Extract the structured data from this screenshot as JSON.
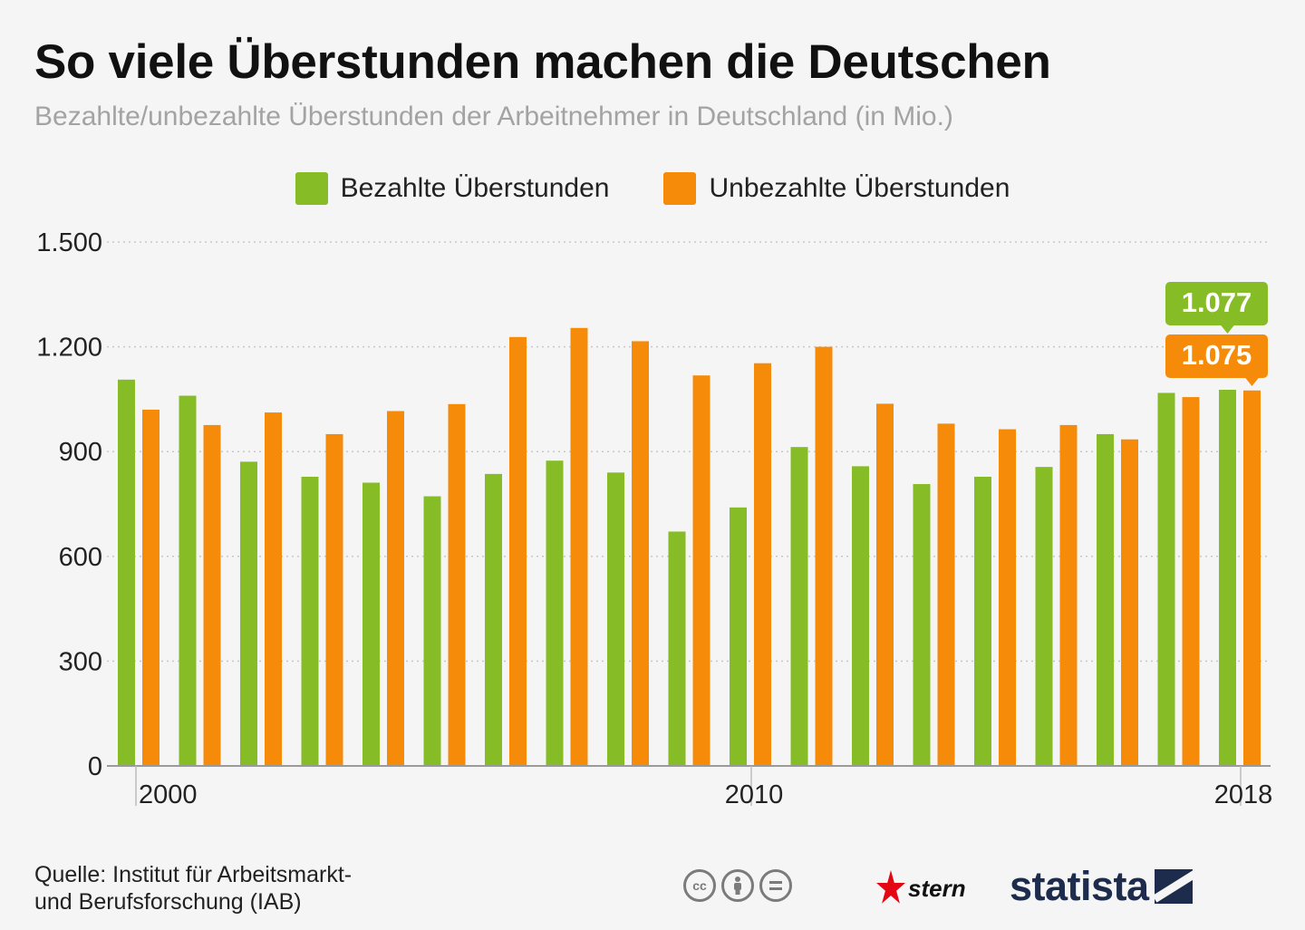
{
  "header": {
    "title": "So viele Überstunden machen die Deutschen",
    "subtitle": "Bezahlte/unbezahlte Überstunden der Arbeitnehmer in Deutschland (in Mio.)"
  },
  "legend": {
    "paid": "Bezahlte Überstunden",
    "unpaid": "Unbezahlte Überstunden"
  },
  "colors": {
    "paid": "#86bc25",
    "unpaid": "#f68b0a",
    "grid": "#c8c8c8",
    "axis": "#9a9a9a"
  },
  "chart_data": {
    "type": "bar",
    "title": "So viele Überstunden machen die Deutschen",
    "ylabel": "in Mio.",
    "ylim": [
      0,
      1500
    ],
    "yticks": [
      0,
      300,
      600,
      900,
      1200,
      1500
    ],
    "ytick_labels": [
      "0",
      "300",
      "600",
      "900",
      "1.200",
      "1.500"
    ],
    "categories": [
      "2000",
      "2001",
      "2002",
      "2003",
      "2004",
      "2005",
      "2006",
      "2007",
      "2008",
      "2009",
      "2010",
      "2011",
      "2012",
      "2013",
      "2014",
      "2015",
      "2016",
      "2017",
      "2018"
    ],
    "xtick_labels": {
      "2000": "2000",
      "2010": "2010",
      "2018": "2018"
    },
    "series": [
      {
        "name": "Bezahlte Überstunden",
        "key": "paid",
        "values": [
          1106,
          1060,
          871,
          828,
          811,
          772,
          836,
          874,
          840,
          671,
          740,
          913,
          858,
          807,
          828,
          856,
          950,
          1068,
          1077
        ]
      },
      {
        "name": "Unbezahlte Überstunden",
        "key": "unpaid",
        "values": [
          1020,
          976,
          1012,
          950,
          1016,
          1036,
          1228,
          1254,
          1216,
          1118,
          1153,
          1200,
          1037,
          980,
          964,
          976,
          935,
          1056,
          1075
        ]
      }
    ],
    "annotations": [
      {
        "series": "paid",
        "category": "2018",
        "label": "1.077"
      },
      {
        "series": "unpaid",
        "category": "2018",
        "label": "1.075"
      }
    ],
    "grid": true,
    "legend_position": "top-center"
  },
  "footer": {
    "source_line1": "Quelle: Institut für Arbeitsmarkt-",
    "source_line2": "und Berufsforschung (IAB)",
    "cc_icons": [
      "cc-icon",
      "by-icon",
      "nd-icon"
    ],
    "stern_label": "stern",
    "statista_label": "statista"
  }
}
